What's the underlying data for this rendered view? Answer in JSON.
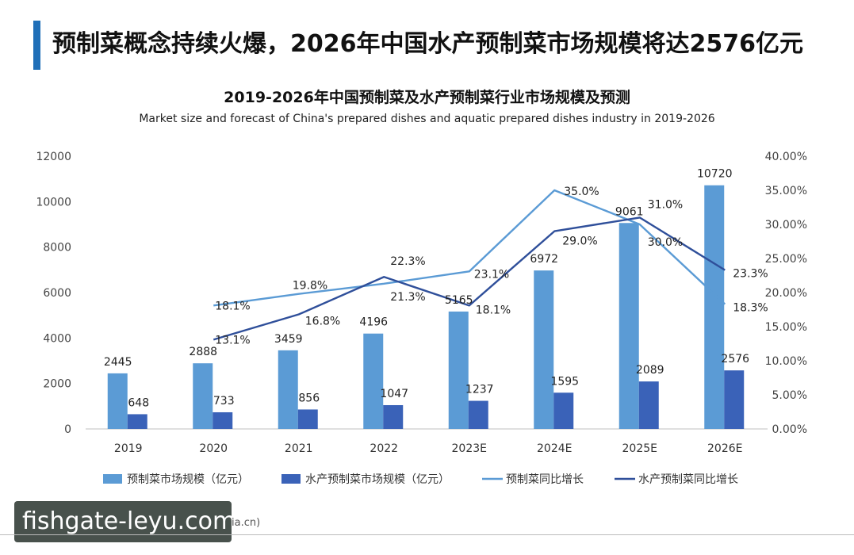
{
  "headline": "预制菜概念持续火爆，2026年中国水产预制菜市场规模将达2576亿元",
  "watermark": "fishgate-leyu.com",
  "source_partial": "ia.cn)",
  "colors": {
    "accent": "#1f6fb8",
    "bar_total": "#5b9bd5",
    "bar_aquatic": "#3a62b8",
    "line_total": "#5b9bd5",
    "line_aquatic": "#2f4f9a"
  },
  "chart_data": {
    "type": "bar",
    "title": "2019-2026年中国预制菜及水产预制菜行业市场规模及预测",
    "subtitle": "Market size and forecast of China's prepared dishes and aquatic prepared dishes industry in 2019-2026",
    "categories": [
      "2019",
      "2020",
      "2021",
      "2022",
      "2023E",
      "2024E",
      "2025E",
      "2026E"
    ],
    "y_left": {
      "min": 0,
      "max": 12000,
      "ticks": [
        "0",
        "2000",
        "4000",
        "6000",
        "8000",
        "10000",
        "12000"
      ]
    },
    "y_right": {
      "min": 0,
      "max": 40,
      "ticks": [
        "0.00%",
        "5.00%",
        "10.00%",
        "15.00%",
        "20.00%",
        "25.00%",
        "30.00%",
        "35.00%",
        "40.00%"
      ]
    },
    "grid": false,
    "legend_position": "bottom",
    "series": [
      {
        "name": "预制菜市场规模（亿元）",
        "kind": "bar",
        "axis": "left",
        "values": [
          2445,
          2888,
          3459,
          4196,
          5165,
          6972,
          9061,
          10720
        ],
        "labels": [
          "2445",
          "2888",
          "3459",
          "4196",
          "5165",
          "6972",
          "9061",
          "10720"
        ]
      },
      {
        "name": "水产预制菜市场规模（亿元）",
        "kind": "bar",
        "axis": "left",
        "values": [
          648,
          733,
          856,
          1047,
          1237,
          1595,
          2089,
          2576
        ],
        "labels": [
          "648",
          "733",
          "856",
          "1047",
          "1237",
          "1595",
          "2089",
          "2576"
        ]
      },
      {
        "name": "预制菜同比增长",
        "kind": "line",
        "axis": "right",
        "values": [
          null,
          18.1,
          19.8,
          21.3,
          23.1,
          35.0,
          30.0,
          18.3
        ],
        "labels": [
          "",
          "18.1%",
          "19.8%",
          "21.3%",
          "23.1%",
          "35.0%",
          "30.0%",
          "18.3%"
        ]
      },
      {
        "name": "水产预制菜同比增长",
        "kind": "line",
        "axis": "right",
        "values": [
          null,
          13.1,
          16.8,
          22.3,
          18.1,
          29.0,
          31.0,
          23.3
        ],
        "labels": [
          "",
          "13.1%",
          "16.8%",
          "22.3%",
          "18.1%",
          "29.0%",
          "31.0%",
          "23.3%"
        ]
      }
    ]
  }
}
